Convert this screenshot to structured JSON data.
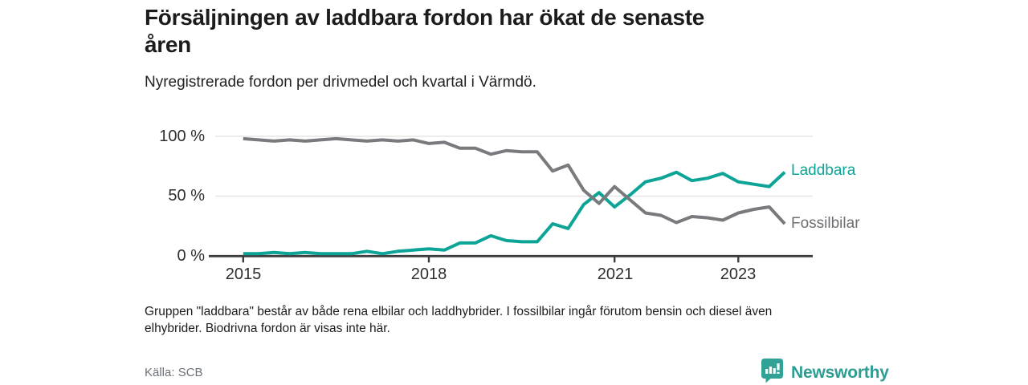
{
  "header": {
    "title_lines": [
      "Försäljningen av laddbara fordon har ökat de senaste",
      "åren"
    ],
    "subtitle": "Nyregistrerade fordon per drivmedel och kvartal i Värmdö."
  },
  "footnote_lines": [
    "Gruppen \"laddbara\" består av både rena elbilar och laddhybrider. I fossilbilar ingår förutom bensin och diesel även",
    "elhybrider. Biodrivna fordon är visas inte här."
  ],
  "source": "Källa: SCB",
  "brand": {
    "name": "Newsworthy",
    "icon": "newsworthy-speech-bubble-chart-icon",
    "text_color": "#2d9d93",
    "icon_color": "#31a296"
  },
  "chart_data": {
    "type": "line",
    "title": "Nyregistrerade fordon per drivmedel och kvartal i Värmdö",
    "x_unit": "quarter",
    "x_start": "2015 Q1",
    "x_end": "2023 Q4",
    "ylim": [
      0,
      100
    ],
    "grid": "horizontal",
    "legend_position": "right-of-line-ends",
    "y_ticks": [
      {
        "value": 100,
        "label": "100 %"
      },
      {
        "value": 50,
        "label": "50 %"
      },
      {
        "value": 0,
        "label": "0 %"
      }
    ],
    "x_ticks": [
      {
        "year": 2015,
        "label": "2015"
      },
      {
        "year": 2018,
        "label": "2018"
      },
      {
        "year": 2021,
        "label": "2021"
      },
      {
        "year": 2023,
        "label": "2023"
      }
    ],
    "quarters": [
      "2015Q1",
      "2015Q2",
      "2015Q3",
      "2015Q4",
      "2016Q1",
      "2016Q2",
      "2016Q3",
      "2016Q4",
      "2017Q1",
      "2017Q2",
      "2017Q3",
      "2017Q4",
      "2018Q1",
      "2018Q2",
      "2018Q3",
      "2018Q4",
      "2019Q1",
      "2019Q2",
      "2019Q3",
      "2019Q4",
      "2020Q1",
      "2020Q2",
      "2020Q3",
      "2020Q4",
      "2021Q1",
      "2021Q2",
      "2021Q3",
      "2021Q4",
      "2022Q1",
      "2022Q2",
      "2022Q3",
      "2022Q4",
      "2023Q1",
      "2023Q2",
      "2023Q3",
      "2023Q4"
    ],
    "series": [
      {
        "name": "Laddbara",
        "color": "#0ca496",
        "values": [
          2,
          2,
          3,
          2,
          3,
          2,
          2,
          2,
          4,
          2,
          4,
          5,
          6,
          5,
          11,
          11,
          17,
          13,
          12,
          12,
          27,
          23,
          43,
          53,
          41,
          51,
          62,
          65,
          70,
          63,
          65,
          69,
          62,
          60,
          58,
          70
        ]
      },
      {
        "name": "Fossilbilar",
        "color": "#797a7d",
        "values": [
          98,
          97,
          96,
          97,
          96,
          97,
          98,
          97,
          96,
          97,
          96,
          97,
          94,
          95,
          90,
          90,
          85,
          88,
          87,
          87,
          71,
          76,
          55,
          44,
          58,
          47,
          36,
          34,
          28,
          33,
          32,
          30,
          36,
          39,
          41,
          27
        ]
      }
    ],
    "axis_color": "#3d3d3d",
    "gridline_color": "#e7e7e7"
  }
}
